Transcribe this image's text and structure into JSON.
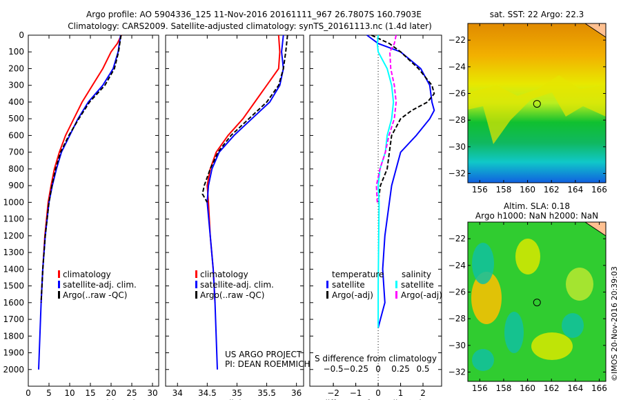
{
  "title_line1": "Argo profile: AO 5904336_125 11-Nov-2016 20161111_967 26.7807S 160.7903E",
  "title_line2": "Climatology: CARS2009. Satellite-adjusted climatology: synTS_20161113.nc (1.4d later)",
  "credit": "©IMOS 20-Nov-2016 20:39:03",
  "project_line1": "US ARGO PROJECT",
  "project_line2": "PI: DEAN ROEMMICH",
  "colors": {
    "clim": "#ff0000",
    "sat": "#0000ff",
    "argo": "#000000",
    "sat_s": "#00ffff",
    "argo_s": "#ff00ff"
  },
  "chart_data": [
    {
      "type": "line",
      "xlabel": "temperature (deg C)",
      "xlim": [
        0,
        31.5
      ],
      "xticks": [
        0,
        5,
        10,
        15,
        20,
        25,
        30
      ],
      "ylim": [
        0,
        2100
      ],
      "yticks": [
        0,
        100,
        200,
        300,
        400,
        500,
        600,
        700,
        800,
        900,
        1000,
        1100,
        1200,
        1300,
        1400,
        1500,
        1600,
        1700,
        1800,
        1900,
        2000
      ],
      "legend": [
        "climatology",
        "satellite-adj. clim.",
        "Argo(..raw -QC)"
      ],
      "series": [
        {
          "name": "climatology",
          "depth": [
            0,
            50,
            100,
            200,
            300,
            400,
            500,
            600,
            700,
            800,
            900,
            1000,
            1200,
            1400,
            1600
          ],
          "values": [
            22.5,
            21.5,
            20,
            18,
            15.5,
            13,
            11,
            9,
            7.5,
            6.3,
            5.5,
            4.8,
            4,
            3.5,
            3.1
          ]
        },
        {
          "name": "satellite-adj. clim.",
          "depth": [
            0,
            50,
            100,
            200,
            300,
            400,
            500,
            600,
            700,
            800,
            900,
            1000,
            1200,
            1400,
            1600,
            1800,
            2000
          ],
          "values": [
            22.3,
            22,
            21.7,
            20.5,
            18,
            14.5,
            12,
            10,
            8,
            6.8,
            5.8,
            5,
            4.1,
            3.5,
            3.1,
            2.8,
            2.5
          ]
        },
        {
          "name": "Argo(..raw -QC)",
          "depth": [
            0,
            50,
            100,
            200,
            300,
            400,
            500,
            600,
            700,
            800,
            900,
            1000,
            1200,
            1400,
            1600
          ],
          "values": [
            22.4,
            22.1,
            21.8,
            20.8,
            18.5,
            14.8,
            12.2,
            9.8,
            7.8,
            6.6,
            5.7,
            5,
            4.1,
            3.5,
            3.1
          ]
        }
      ]
    },
    {
      "type": "line",
      "xlabel": "salinity",
      "xlim": [
        33.8,
        36.12
      ],
      "xticks": [
        34,
        34.5,
        35,
        35.5,
        36
      ],
      "ylim": [
        0,
        2100
      ],
      "legend": [
        "climatology",
        "satellite-adj. clim.",
        "Argo(..raw -QC)"
      ],
      "series": [
        {
          "name": "climatology",
          "depth": [
            0,
            100,
            200,
            300,
            400,
            500,
            600,
            700,
            800,
            900,
            1000,
            1200,
            1400,
            1600
          ],
          "values": [
            35.7,
            35.72,
            35.7,
            35.5,
            35.3,
            35.1,
            34.85,
            34.65,
            34.55,
            34.5,
            34.52,
            34.55,
            34.6,
            34.63
          ]
        },
        {
          "name": "satellite-adj. clim.",
          "depth": [
            0,
            100,
            200,
            300,
            400,
            500,
            600,
            700,
            800,
            900,
            1000,
            1200,
            1400,
            1600,
            1800,
            2000
          ],
          "values": [
            35.78,
            35.75,
            35.78,
            35.72,
            35.55,
            35.25,
            34.95,
            34.7,
            34.58,
            34.52,
            34.5,
            34.55,
            34.6,
            34.63,
            34.65,
            34.67
          ]
        },
        {
          "name": "Argo(..raw -QC)",
          "depth": [
            0,
            100,
            200,
            300,
            400,
            500,
            600,
            700,
            800,
            900,
            950,
            1000
          ],
          "values": [
            35.85,
            35.82,
            35.78,
            35.7,
            35.5,
            35.2,
            34.9,
            34.68,
            34.55,
            34.45,
            34.42,
            34.5
          ]
        }
      ]
    },
    {
      "type": "line",
      "xlabel": "T difference from climatology",
      "top_xlabel": "S difference from climatology",
      "xlim": [
        -3.05,
        2.83
      ],
      "xticks": [
        -2,
        -1,
        0,
        1,
        2
      ],
      "top_xticks": [
        -0.5,
        -0.25,
        0,
        0.25,
        0.5
      ],
      "top_labels": [
        "-0.5",
        "-0.25",
        "0",
        "0.25",
        "0.5"
      ],
      "ylim": [
        0,
        2100
      ],
      "legend_headers": [
        "temperature",
        "salinity"
      ],
      "legend": [
        "satellite",
        "Argo(-adj)",
        "satellite",
        "Argo(-adj)"
      ],
      "series": [
        {
          "name": "T satellite",
          "units": "T",
          "depth": [
            0,
            50,
            100,
            200,
            300,
            400,
            450,
            500,
            600,
            700,
            800,
            900,
            1000,
            1200,
            1400,
            1600,
            1700,
            1750
          ],
          "values": [
            -0.5,
            0,
            1,
            1.9,
            2.3,
            2.4,
            2.5,
            2.3,
            1.7,
            1.0,
            0.8,
            0.6,
            0.5,
            0.3,
            0.2,
            0.3,
            0.1,
            0
          ]
        },
        {
          "name": "T Argo(-adj)",
          "units": "T",
          "depth": [
            0,
            50,
            100,
            200,
            300,
            350,
            400,
            450,
            500,
            600,
            700,
            800,
            900,
            1000
          ],
          "values": [
            -0.3,
            0.5,
            1.0,
            1.8,
            2.4,
            2.5,
            2.2,
            1.5,
            1.0,
            0.6,
            0.5,
            0.4,
            0.1,
            0
          ]
        },
        {
          "name": "S satellite",
          "units": "S",
          "depth": [
            0,
            50,
            100,
            200,
            300,
            400,
            500,
            600,
            700,
            800,
            900,
            1000,
            1500,
            1750
          ],
          "values": [
            0,
            -0.01,
            0,
            0.1,
            0.15,
            0.17,
            0.15,
            0.1,
            0.08,
            0.02,
            0,
            0.01,
            0,
            0
          ]
        },
        {
          "name": "S Argo(-adj)",
          "units": "S",
          "depth": [
            0,
            50,
            100,
            200,
            300,
            400,
            500,
            600,
            700,
            800,
            900,
            1000
          ],
          "values": [
            0.2,
            0.18,
            0.13,
            0.14,
            0.18,
            0.2,
            0.18,
            0.12,
            0.08,
            0.02,
            -0.02,
            -0.01
          ]
        }
      ]
    },
    {
      "type": "heatmap",
      "title": "sat. SST: 22 Argo: 22.3",
      "xlim": [
        155,
        166.55
      ],
      "ylim": [
        -32.7,
        -20.75
      ],
      "xticks": [
        156,
        158,
        160,
        162,
        164,
        166
      ],
      "yticks": [
        -22,
        -24,
        -26,
        -28,
        -30,
        -32
      ],
      "argo_position": [
        160.79,
        -26.78
      ]
    },
    {
      "type": "heatmap",
      "title": "Altim. SLA: 0.18",
      "subtitle": "Argo h1000: NaN h2000: NaN",
      "xlim": [
        155,
        166.55
      ],
      "ylim": [
        -32.7,
        -20.75
      ],
      "xticks": [
        156,
        158,
        160,
        162,
        164,
        166
      ],
      "yticks": [
        -22,
        -24,
        -26,
        -28,
        -30,
        -32
      ],
      "argo_position": [
        160.79,
        -26.78
      ]
    }
  ]
}
